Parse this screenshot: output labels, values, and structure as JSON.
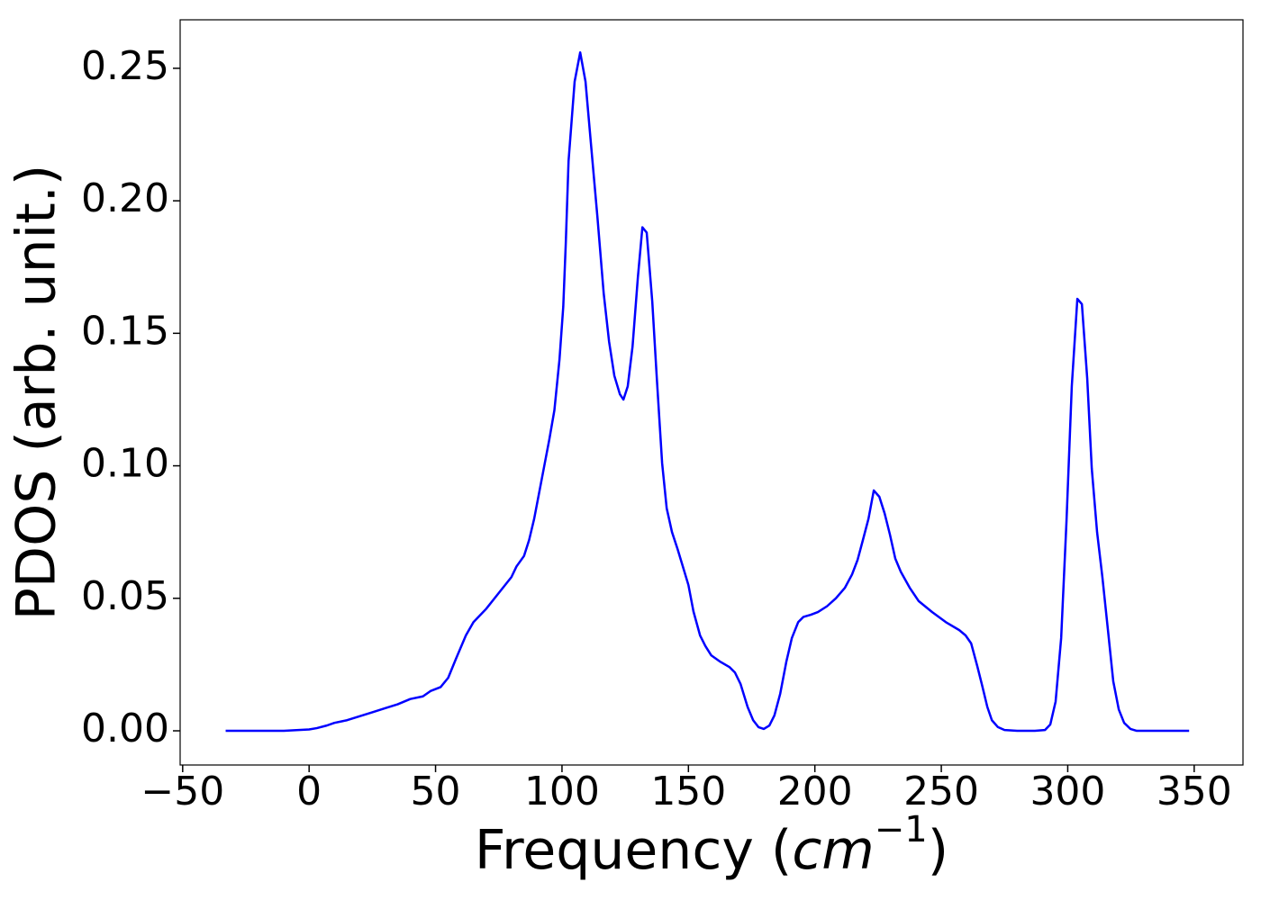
{
  "chart_data": {
    "type": "line",
    "xlabel": [
      "Frequency (",
      "cm",
      "−1",
      ")"
    ],
    "ylabel": "PDOS (arb. unit.)",
    "color": "#0000ff",
    "x": [
      -33,
      -10,
      0,
      3,
      7,
      10,
      15,
      20,
      25,
      30,
      35,
      40,
      45,
      48,
      52,
      55,
      58,
      62,
      65,
      70,
      75,
      80,
      82,
      85,
      87,
      89,
      91,
      93,
      95,
      97,
      99,
      100.5,
      101.5,
      102.6,
      105,
      107.2,
      109.3,
      111.5,
      114,
      116.5,
      118.6,
      120.7,
      122.9,
      124.3,
      126,
      127.9,
      130,
      131.8,
      133.5,
      135.7,
      137.5,
      139.6,
      141.4,
      143.5,
      145.7,
      147.8,
      150,
      152,
      154.6,
      156.7,
      159,
      162.7,
      166.3,
      168.4,
      170.6,
      173.4,
      175.6,
      177.7,
      179.8,
      182,
      184,
      186.3,
      188.7,
      190.9,
      193.4,
      195.5,
      198.4,
      201.2,
      204.8,
      208.3,
      211.9,
      214.7,
      216.9,
      219,
      221.2,
      223.3,
      225.5,
      227.6,
      229.7,
      231.8,
      234,
      237.5,
      241,
      246.4,
      251.8,
      257.1,
      259.6,
      261.8,
      264.2,
      266,
      268.2,
      270,
      272.4,
      275,
      280,
      287,
      291,
      293.1,
      295.2,
      297.4,
      299.5,
      301.6,
      303.8,
      305.6,
      307.7,
      309.5,
      311.6,
      313.7,
      315.9,
      318,
      320.2,
      322.3,
      324.8,
      327.3,
      348
    ],
    "values": [
      0,
      0,
      0.0005,
      0.001,
      0.002,
      0.003,
      0.004,
      0.0055,
      0.007,
      0.0085,
      0.01,
      0.012,
      0.013,
      0.015,
      0.0165,
      0.02,
      0.027,
      0.036,
      0.041,
      0.046,
      0.052,
      0.058,
      0.062,
      0.066,
      0.072,
      0.08,
      0.09,
      0.1,
      0.11,
      0.121,
      0.14,
      0.16,
      0.184,
      0.215,
      0.245,
      0.256,
      0.245,
      0.221,
      0.194,
      0.165,
      0.147,
      0.134,
      0.127,
      0.125,
      0.13,
      0.145,
      0.171,
      0.19,
      0.188,
      0.162,
      0.133,
      0.101,
      0.084,
      0.075,
      0.0686,
      0.062,
      0.055,
      0.045,
      0.036,
      0.032,
      0.0285,
      0.026,
      0.024,
      0.022,
      0.0177,
      0.009,
      0.004,
      0.0014,
      0.0007,
      0.002,
      0.0058,
      0.014,
      0.026,
      0.035,
      0.041,
      0.043,
      0.0438,
      0.0448,
      0.047,
      0.05,
      0.054,
      0.059,
      0.0645,
      0.072,
      0.08,
      0.0907,
      0.0883,
      0.082,
      0.074,
      0.065,
      0.06,
      0.054,
      0.049,
      0.0448,
      0.041,
      0.038,
      0.036,
      0.033,
      0.0245,
      0.0177,
      0.009,
      0.004,
      0.0014,
      0.0003,
      0,
      0,
      0.0003,
      0.0024,
      0.011,
      0.035,
      0.079,
      0.13,
      0.163,
      0.161,
      0.133,
      0.099,
      0.075,
      0.058,
      0.038,
      0.0187,
      0.008,
      0.003,
      0.0007,
      0,
      0
    ],
    "xlim": [
      -51,
      369.3
    ],
    "ylim": [
      -0.0129,
      0.2683
    ],
    "xticks": [
      {
        "value": -50,
        "label": "−50"
      },
      0,
      50,
      100,
      150,
      200,
      250,
      300,
      350
    ],
    "yticks": [
      {
        "value": 0,
        "label": "0.00"
      },
      0.05,
      {
        "value": 0.1,
        "label": "0.10"
      },
      0.15,
      {
        "value": 0.2,
        "label": "0.20"
      },
      0.25
    ],
    "grid": false
  }
}
